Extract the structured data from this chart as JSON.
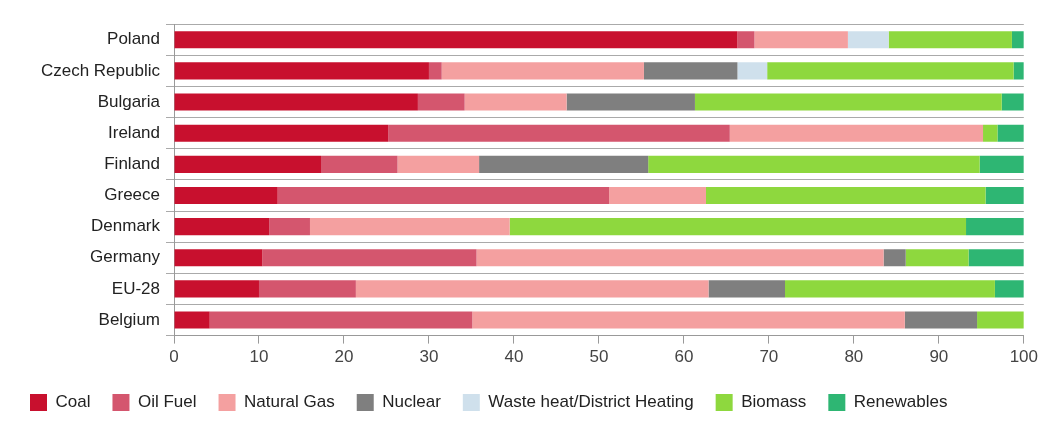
{
  "chart_data": {
    "type": "bar",
    "orientation": "horizontal",
    "stacked": true,
    "categories": [
      "Poland",
      "Czech Republic",
      "Bulgaria",
      "Ireland",
      "Finland",
      "Greece",
      "Denmark",
      "Germany",
      "EU-28",
      "Belgium"
    ],
    "series": [
      {
        "name": "Coal",
        "color": "#c8102e",
        "values": [
          66.3,
          30,
          28.7,
          25.2,
          17.3,
          12.2,
          11.2,
          10.4,
          10,
          4.2
        ]
      },
      {
        "name": "Oil Fuel",
        "color": "#d4566e",
        "values": [
          2,
          1.5,
          5.5,
          40.2,
          9,
          39,
          4.8,
          25.2,
          11.4,
          30.9
        ]
      },
      {
        "name": "Natural Gas",
        "color": "#f4a0a0",
        "values": [
          11,
          23.8,
          12,
          29.8,
          9.6,
          11.4,
          23.5,
          47.9,
          41.5,
          50.9
        ]
      },
      {
        "name": "Nuclear",
        "color": "#7f7f7f",
        "values": [
          0,
          11,
          15.1,
          0,
          19.9,
          0,
          0,
          2.6,
          9,
          8.5
        ]
      },
      {
        "name": "Waste heat/District Heating",
        "color": "#cfe0ec",
        "values": [
          4.8,
          3.5,
          0,
          0,
          0,
          0,
          0,
          0,
          0,
          0
        ]
      },
      {
        "name": "Biomass",
        "color": "#8ed83e",
        "values": [
          14.5,
          29,
          36.1,
          1.7,
          39,
          32.9,
          53.7,
          7.4,
          24.7,
          5.5
        ]
      },
      {
        "name": "Renewables",
        "color": "#2eb673",
        "values": [
          1.4,
          1.2,
          2.6,
          3.1,
          5.2,
          4.5,
          6.8,
          6.5,
          3.4,
          0
        ]
      }
    ],
    "xlim": [
      0,
      100
    ],
    "xticks": [
      0,
      10,
      20,
      30,
      40,
      50,
      60,
      70,
      80,
      90,
      100
    ],
    "grid": "y",
    "legend": "bottom"
  }
}
